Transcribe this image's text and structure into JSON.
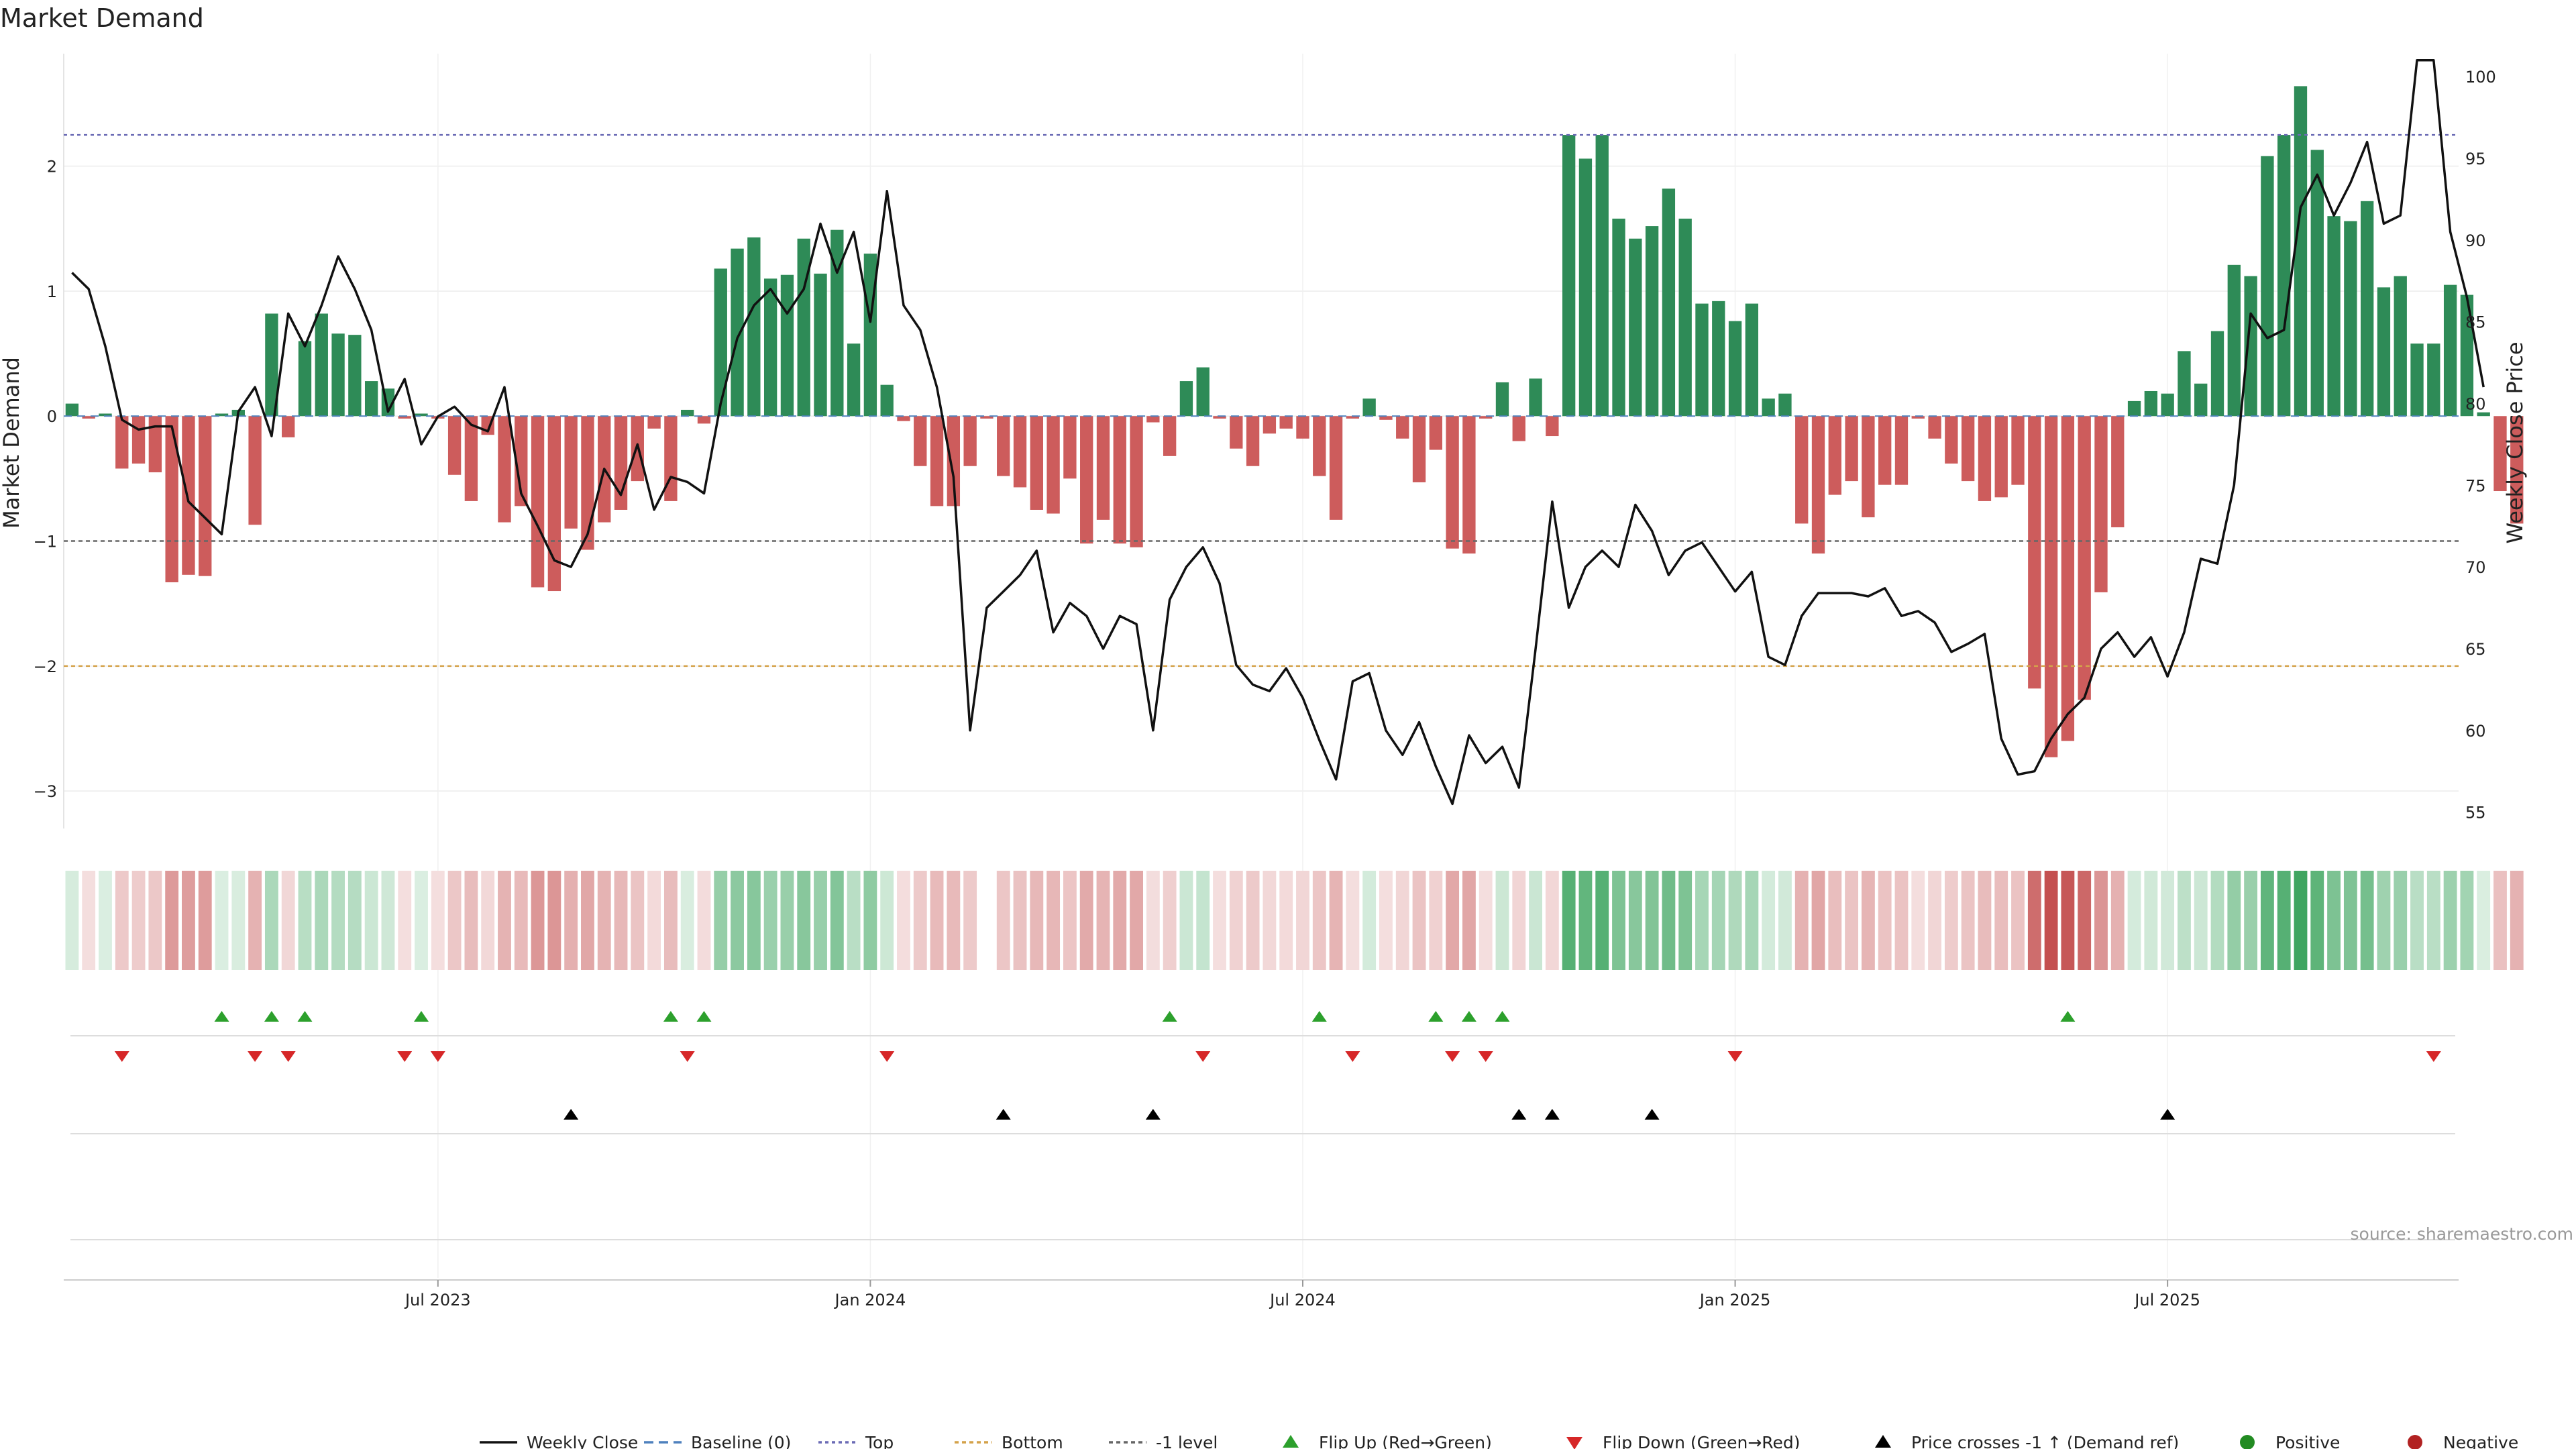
{
  "chart_data": {
    "type": "bar",
    "title": "Market Demand",
    "ylabel": "Market Demand",
    "y2label": "Weekly Close Price",
    "ylim": [
      -3.3,
      2.9
    ],
    "y2lim": [
      54,
      101.4
    ],
    "yticks": [
      2,
      1,
      0,
      -1,
      -2,
      -3
    ],
    "ytick_labels": [
      "2",
      "1",
      "0",
      "−1",
      "−2",
      "−3"
    ],
    "y2ticks": [
      100,
      95,
      90,
      85,
      80,
      75,
      70,
      65,
      60,
      55
    ],
    "y2tick_labels": [
      "100",
      "95",
      "90",
      "85",
      "80",
      "75",
      "70",
      "65",
      "60",
      "55"
    ],
    "x_start": "2023-01-13",
    "week_count": 144,
    "xtick_weeks": [
      22,
      48,
      74,
      100,
      126
    ],
    "xtick_labels": [
      "Jul 2023",
      "Jan 2024",
      "Jul 2024",
      "Jan 2025",
      "Jul 2025"
    ],
    "reference_levels": {
      "top": 2.25,
      "bottom": -2.0,
      "minus_one": -1.0,
      "baseline": 0
    },
    "demand": [
      0.1,
      -0.02,
      0.02,
      -0.42,
      -0.38,
      -0.45,
      -1.33,
      -1.27,
      -1.28,
      0.02,
      0.05,
      -0.87,
      0.82,
      -0.17,
      0.6,
      0.82,
      0.66,
      0.65,
      0.28,
      0.22,
      -0.02,
      0.02,
      -0.02,
      -0.47,
      -0.68,
      -0.15,
      -0.85,
      -0.72,
      -1.37,
      -1.4,
      -0.9,
      -1.07,
      -0.85,
      -0.75,
      -0.52,
      -0.1,
      -0.68,
      0.05,
      -0.06,
      1.18,
      1.34,
      1.43,
      1.1,
      1.13,
      1.42,
      1.14,
      1.49,
      0.58,
      1.3,
      0.25,
      -0.04,
      -0.4,
      -0.72,
      -0.72,
      -0.4,
      -0.02,
      -0.48,
      -0.57,
      -0.75,
      -0.78,
      -0.5,
      -1.02,
      -0.83,
      -1.02,
      -1.05,
      -0.05,
      -0.32,
      0.28,
      0.39,
      -0.02,
      -0.26,
      -0.4,
      -0.14,
      -0.1,
      -0.18,
      -0.48,
      -0.83,
      -0.02,
      0.14,
      -0.03,
      -0.18,
      -0.53,
      -0.27,
      -1.06,
      -1.1,
      -0.02,
      0.27,
      -0.2,
      0.3,
      -0.16,
      2.25,
      2.06,
      2.25,
      1.58,
      1.42,
      1.52,
      1.82,
      1.58,
      0.9,
      0.92,
      0.76,
      0.9,
      0.14,
      0.18,
      -0.86,
      -1.1,
      -0.63,
      -0.52,
      -0.81,
      -0.55,
      -0.55,
      -0.02,
      -0.18,
      -0.38,
      -0.52,
      -0.68,
      -0.65,
      -0.55,
      -2.18,
      -2.73,
      -2.6,
      -2.27,
      -1.41,
      -0.89,
      0.12,
      0.2,
      0.18,
      0.52,
      0.26,
      0.68,
      1.21,
      1.12,
      2.08,
      2.25,
      2.64,
      2.13,
      1.6,
      1.56,
      1.72,
      1.03,
      1.12,
      0.58,
      0.58,
      1.05,
      0.97,
      0.03,
      -0.6,
      -0.86
    ],
    "weekly_close": [
      88,
      87,
      83.5,
      79,
      78.4,
      78.6,
      78.6,
      74,
      73,
      72,
      79.5,
      81,
      78,
      85.5,
      83.5,
      86,
      89,
      87,
      84.5,
      79.5,
      81.5,
      77.5,
      79.2,
      79.8,
      78.7,
      78.3,
      81,
      74.5,
      72.5,
      70.4,
      70,
      72,
      76,
      74.4,
      77.5,
      73.5,
      75.5,
      75.2,
      74.5,
      80,
      84,
      86,
      87,
      85.5,
      87,
      91,
      88,
      90.5,
      85,
      93,
      86,
      84.5,
      81,
      75.5,
      60,
      67.5,
      68.5,
      69.5,
      71,
      66,
      67.8,
      67,
      65,
      67,
      66.5,
      60,
      68,
      70,
      71.2,
      69,
      64,
      62.8,
      62.4,
      63.8,
      62,
      59.4,
      57,
      63,
      63.5,
      60,
      58.5,
      60.5,
      57.8,
      55.5,
      59.7,
      58,
      59,
      56.5,
      65,
      74,
      67.5,
      70,
      71,
      70,
      73.8,
      72.2,
      69.5,
      71,
      71.5,
      70,
      68.5,
      69.7,
      64.5,
      64,
      67,
      68.4,
      68.4,
      68.4,
      68.2,
      68.7,
      67,
      67.3,
      66.6,
      64.8,
      65.3,
      65.9,
      59.5,
      57.3,
      57.5,
      59.5,
      61,
      62,
      65,
      66,
      64.5,
      65.7,
      63.3,
      66,
      70.5,
      70.2,
      75,
      85.5,
      84,
      84.5,
      92,
      94,
      91.5,
      93.5,
      96,
      91,
      91.5,
      101,
      101,
      90.5,
      86.5,
      81
    ]
  },
  "heat_band": {
    "name": "demand heat band"
  },
  "flip_up_weeks": [
    9,
    12,
    14,
    21,
    36,
    38,
    66,
    75,
    82,
    84,
    86,
    120
  ],
  "flip_down_weeks": [
    3,
    11,
    13,
    20,
    22,
    37,
    49,
    68,
    77,
    83,
    85,
    100,
    142
  ],
  "price_cross_weeks": [
    30,
    56,
    65,
    87,
    89,
    95,
    126
  ],
  "source_text": "source: sharemaestro.com",
  "legend": {
    "weekly_close": "Weekly Close",
    "baseline": "Baseline (0)",
    "top": "Top",
    "bottom": "Bottom",
    "minus_one": "-1 level",
    "flip_up": "Flip Up (Red→Green)",
    "flip_down": "Flip Down (Green→Red)",
    "price_cross": "Price crosses -1 ↑ (Demand ref)",
    "positive": "Positive",
    "negative": "Negative"
  },
  "colors": {
    "positive": "#2e8b57",
    "negative": "#cd5c5c",
    "price": "#111111",
    "top": "#6b6bb5",
    "bottom": "#d4a24a",
    "minus_one": "#666666",
    "baseline": "#4f81bd",
    "flip_up": "#2ca02c",
    "flip_down": "#d62728",
    "cross": "#000000",
    "positive_dot": "#228b22",
    "negative_dot": "#b22222"
  }
}
